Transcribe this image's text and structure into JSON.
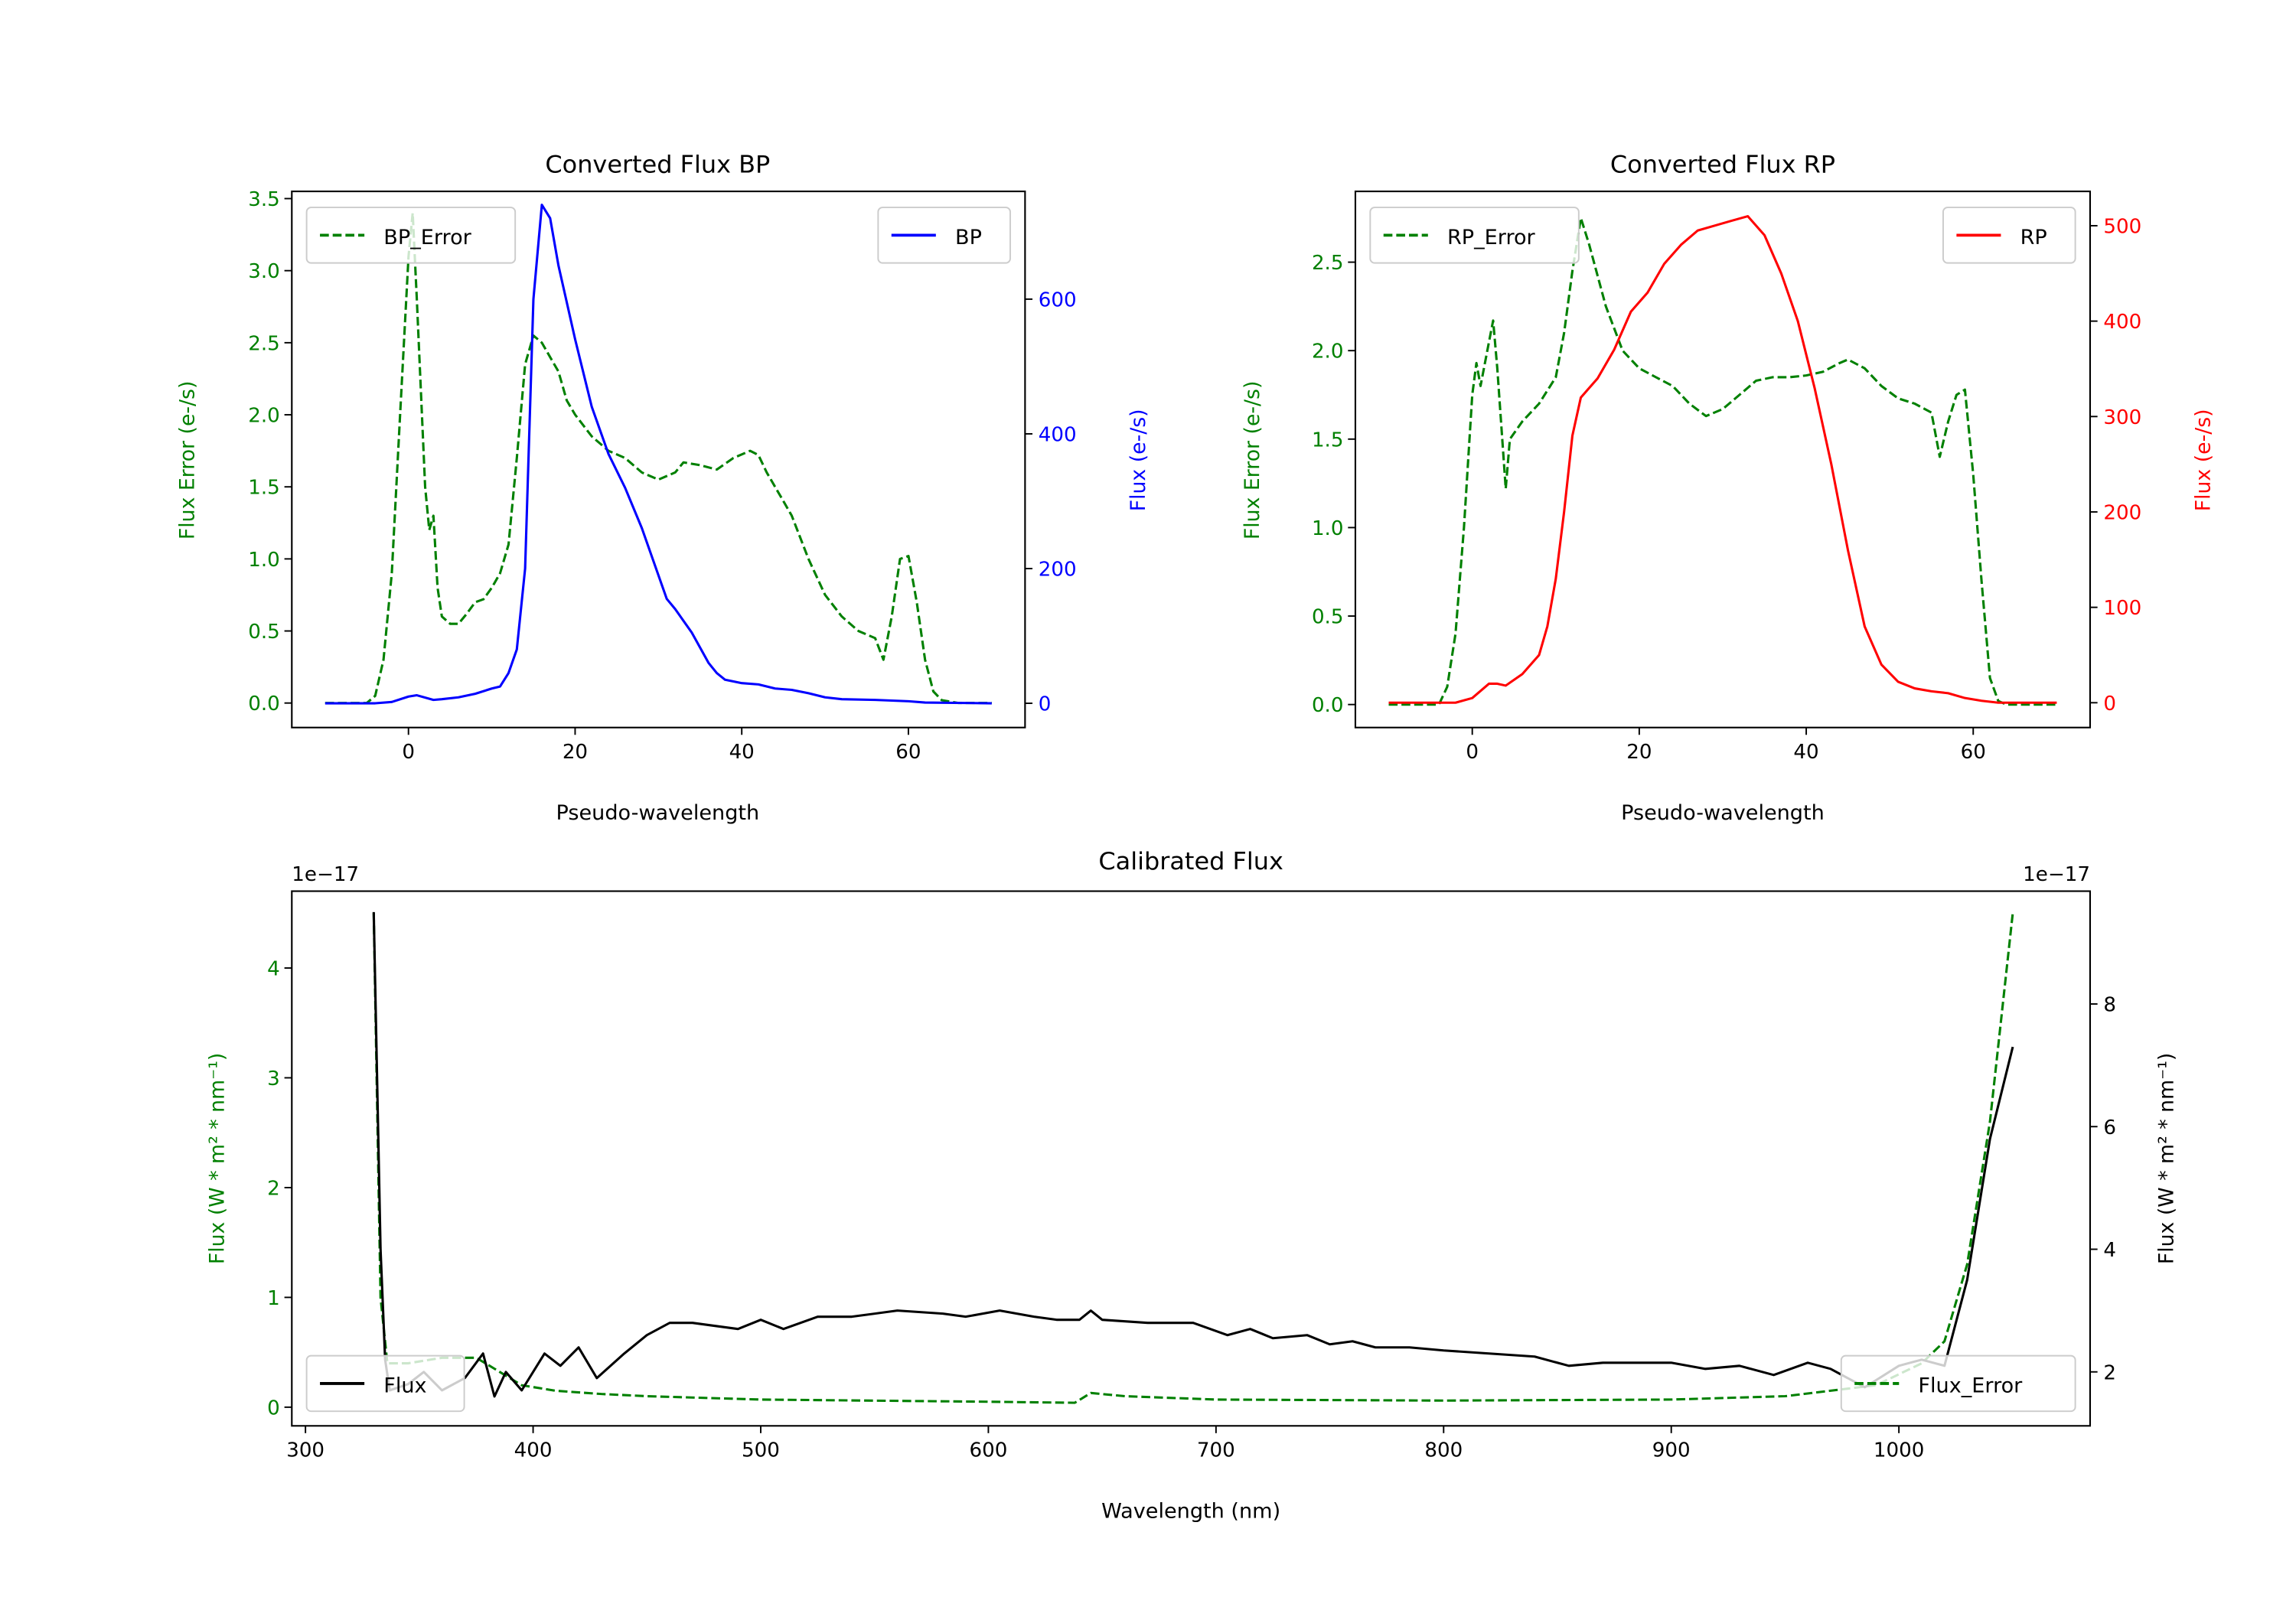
{
  "chart_data": [
    {
      "type": "line",
      "title": "Converted Flux BP",
      "xlabel": "Pseudo-wavelength",
      "ylabel": "Flux Error (e-/s)",
      "ylabel_right": "Flux (e-/s)",
      "xlim": [
        -14,
        74
      ],
      "ylim": [
        -0.17,
        3.55
      ],
      "ylim_right": [
        -36,
        760
      ],
      "xticks": [
        0,
        20,
        40,
        60
      ],
      "yticks": [
        "0.0",
        "0.5",
        "1.0",
        "1.5",
        "2.0",
        "2.5",
        "3.0",
        "3.5"
      ],
      "yticks_right": [
        "0",
        "200",
        "400",
        "600"
      ],
      "left_color": "#008000",
      "right_color": "#0000ff",
      "series": [
        {
          "name": "BP_Error",
          "axis": "left",
          "style": "dashed",
          "color": "#008000",
          "legend": "upper left",
          "x": [
            -10,
            -5,
            -4,
            -3,
            -2,
            -1,
            0,
            0.5,
            1,
            2,
            2.5,
            3,
            3.5,
            4,
            5,
            6,
            7,
            8,
            9,
            10,
            11,
            12,
            13,
            14,
            15,
            16,
            17,
            18,
            19,
            20,
            22,
            24,
            26,
            28,
            30,
            32,
            33,
            35,
            37,
            39,
            41,
            42,
            43,
            45,
            46,
            48,
            50,
            52,
            54,
            56,
            57,
            58,
            59,
            60,
            61,
            62,
            63,
            64,
            66,
            70
          ],
          "y": [
            0,
            0,
            0.05,
            0.3,
            0.9,
            2.0,
            3.1,
            3.4,
            2.8,
            1.5,
            1.2,
            1.3,
            0.8,
            0.6,
            0.55,
            0.55,
            0.62,
            0.7,
            0.72,
            0.8,
            0.9,
            1.1,
            1.7,
            2.35,
            2.55,
            2.5,
            2.4,
            2.3,
            2.1,
            2.0,
            1.85,
            1.75,
            1.7,
            1.6,
            1.55,
            1.6,
            1.67,
            1.65,
            1.62,
            1.7,
            1.75,
            1.72,
            1.6,
            1.4,
            1.3,
            1.0,
            0.75,
            0.6,
            0.5,
            0.45,
            0.3,
            0.6,
            1.0,
            1.02,
            0.7,
            0.3,
            0.08,
            0.02,
            0,
            0
          ]
        },
        {
          "name": "BP",
          "axis": "right",
          "style": "solid",
          "color": "#0000ff",
          "legend": "upper right",
          "x": [
            -10,
            -4,
            -2,
            0,
            1,
            3,
            4,
            6,
            8,
            10,
            11,
            12,
            13,
            14,
            15,
            16,
            17,
            18,
            20,
            22,
            24,
            26,
            28,
            30,
            31,
            32,
            34,
            36,
            37,
            38,
            40,
            42,
            44,
            46,
            48,
            50,
            52,
            56,
            60,
            62,
            70
          ],
          "y": [
            0,
            0,
            2,
            10,
            12,
            5,
            6,
            9,
            14,
            22,
            25,
            45,
            80,
            200,
            600,
            740,
            720,
            650,
            540,
            440,
            370,
            320,
            260,
            190,
            155,
            140,
            105,
            60,
            45,
            35,
            30,
            28,
            22,
            20,
            15,
            9,
            6,
            5,
            3,
            1,
            0
          ]
        }
      ]
    },
    {
      "type": "line",
      "title": "Converted Flux RP",
      "xlabel": "Pseudo-wavelength",
      "ylabel": "Flux Error (e-/s)",
      "ylabel_right": "Flux (e-/s)",
      "xlim": [
        -14,
        74
      ],
      "ylim": [
        -0.13,
        2.9
      ],
      "ylim_right": [
        -26,
        536
      ],
      "xticks": [
        0,
        20,
        40,
        60
      ],
      "yticks": [
        "0.0",
        "0.5",
        "1.0",
        "1.5",
        "2.0",
        "2.5"
      ],
      "yticks_right": [
        "0",
        "100",
        "200",
        "300",
        "400",
        "500"
      ],
      "left_color": "#008000",
      "right_color": "#ff0000",
      "series": [
        {
          "name": "RP_Error",
          "axis": "left",
          "style": "dashed",
          "color": "#008000",
          "legend": "upper left",
          "x": [
            -10,
            -4,
            -3,
            -2,
            -1,
            0,
            0.5,
            1,
            2,
            2.5,
            3,
            4,
            4.5,
            6,
            8,
            10,
            11,
            12,
            13,
            14,
            16,
            18,
            20,
            22,
            24,
            26,
            28,
            30,
            32,
            34,
            36,
            38,
            40,
            42,
            44,
            45,
            47,
            49,
            51,
            53,
            55,
            56,
            57,
            58,
            59,
            60,
            61,
            62,
            63,
            64,
            70
          ],
          "y": [
            0,
            0,
            0.1,
            0.4,
            1.0,
            1.75,
            1.93,
            1.8,
            2.05,
            2.17,
            1.9,
            1.22,
            1.5,
            1.6,
            1.7,
            1.85,
            2.1,
            2.45,
            2.75,
            2.6,
            2.25,
            2.0,
            1.9,
            1.85,
            1.8,
            1.7,
            1.63,
            1.67,
            1.75,
            1.83,
            1.85,
            1.85,
            1.86,
            1.88,
            1.93,
            1.95,
            1.9,
            1.8,
            1.73,
            1.7,
            1.65,
            1.4,
            1.6,
            1.75,
            1.78,
            1.3,
            0.7,
            0.15,
            0.02,
            0,
            0
          ]
        },
        {
          "name": "RP",
          "axis": "right",
          "style": "solid",
          "color": "#ff0000",
          "legend": "upper right",
          "x": [
            -10,
            -2,
            0,
            2,
            3,
            4,
            6,
            8,
            9,
            10,
            11,
            12,
            13,
            15,
            17,
            19,
            21,
            23,
            25,
            27,
            29,
            31,
            33,
            35,
            37,
            39,
            41,
            43,
            45,
            47,
            49,
            51,
            53,
            55,
            57,
            59,
            61,
            63,
            70
          ],
          "y": [
            0,
            0,
            5,
            20,
            20,
            18,
            30,
            50,
            80,
            130,
            200,
            280,
            320,
            340,
            370,
            410,
            430,
            460,
            480,
            495,
            500,
            505,
            510,
            490,
            450,
            400,
            330,
            250,
            160,
            80,
            40,
            22,
            15,
            12,
            10,
            5,
            2,
            0,
            0
          ]
        }
      ]
    },
    {
      "type": "line",
      "title": "Calibrated Flux",
      "xlabel": "Wavelength (nm)",
      "ylabel": "Flux (W * m² * nm⁻¹)",
      "ylabel_right": "Flux (W * m² * nm⁻¹)",
      "offset_text": "1e−17",
      "offset_text_right": "1e−17",
      "xlim": [
        294,
        1084
      ],
      "ylim": [
        -0.17,
        4.7
      ],
      "ylim_right": [
        1.12,
        9.84
      ],
      "xticks": [
        300,
        400,
        500,
        600,
        700,
        800,
        900,
        1000
      ],
      "yticks": [
        "0",
        "1",
        "2",
        "3",
        "4"
      ],
      "yticks_right": [
        "2",
        "4",
        "6",
        "8"
      ],
      "left_color": "#008000",
      "right_color": "#000000",
      "series": [
        {
          "name": "Flux_Error",
          "axis": "left",
          "style": "dashed",
          "color": "#008000",
          "legend": "lower right",
          "x": [
            330,
            333,
            336,
            345,
            360,
            375,
            383,
            395,
            410,
            430,
            450,
            500,
            600,
            638,
            645,
            660,
            700,
            800,
            900,
            950,
            990,
            1010,
            1020,
            1030,
            1040,
            1050
          ],
          "y": [
            4.5,
            1.0,
            0.4,
            0.4,
            0.45,
            0.45,
            0.35,
            0.2,
            0.15,
            0.12,
            0.1,
            0.07,
            0.05,
            0.04,
            0.13,
            0.1,
            0.07,
            0.06,
            0.07,
            0.1,
            0.2,
            0.4,
            0.6,
            1.3,
            2.6,
            4.5
          ]
        },
        {
          "name": "Flux",
          "axis": "right",
          "style": "solid",
          "color": "#000000",
          "legend": "lower left",
          "x": [
            330,
            333,
            335,
            337,
            345,
            352,
            360,
            370,
            378,
            383,
            388,
            395,
            405,
            412,
            420,
            428,
            440,
            450,
            460,
            470,
            480,
            490,
            500,
            510,
            525,
            540,
            560,
            580,
            590,
            605,
            620,
            630,
            640,
            645,
            650,
            670,
            690,
            705,
            715,
            725,
            740,
            750,
            760,
            770,
            785,
            800,
            820,
            840,
            855,
            870,
            885,
            900,
            915,
            930,
            945,
            960,
            970,
            985,
            1000,
            1010,
            1020,
            1030,
            1040,
            1050
          ],
          "y": [
            9.5,
            4,
            2.2,
            1.7,
            1.8,
            2.0,
            1.7,
            1.9,
            2.3,
            1.6,
            2.0,
            1.7,
            2.3,
            2.1,
            2.4,
            1.9,
            2.3,
            2.6,
            2.8,
            2.8,
            2.75,
            2.7,
            2.85,
            2.7,
            2.9,
            2.9,
            3.0,
            2.95,
            2.9,
            3.0,
            2.9,
            2.85,
            2.85,
            3.0,
            2.85,
            2.8,
            2.8,
            2.6,
            2.7,
            2.55,
            2.6,
            2.45,
            2.5,
            2.4,
            2.4,
            2.35,
            2.3,
            2.25,
            2.1,
            2.15,
            2.15,
            2.15,
            2.05,
            2.1,
            1.95,
            2.15,
            2.05,
            1.75,
            2.1,
            2.2,
            2.1,
            3.5,
            5.8,
            7.3
          ]
        }
      ]
    }
  ]
}
